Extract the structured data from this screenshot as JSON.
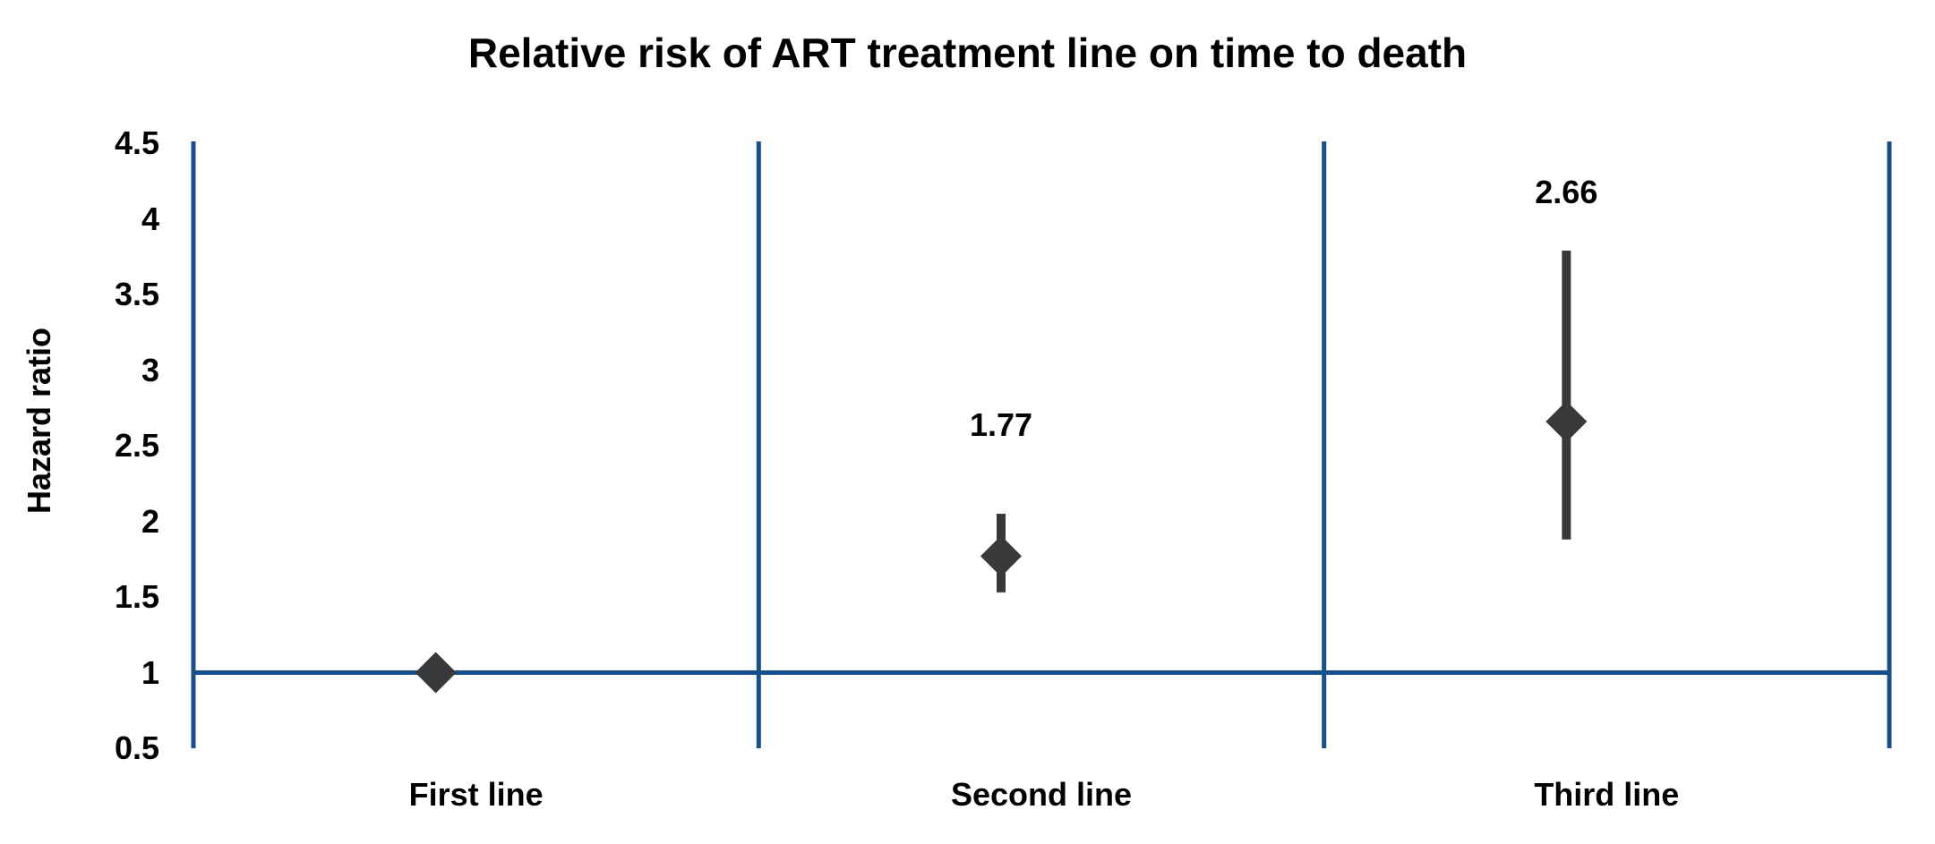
{
  "chart_data": {
    "type": "scatter",
    "title": "Relative risk of ART treatment line on time to death",
    "ylabel": "Hazard ratio",
    "xlabel": "",
    "categories": [
      "First line",
      "Second line",
      "Third line"
    ],
    "series": [
      {
        "name": "Hazard ratio with confidence interval",
        "points": [
          {
            "category": "First line",
            "hr": 1.0,
            "ci_low": null,
            "ci_high": null,
            "label": ""
          },
          {
            "category": "Second line",
            "hr": 1.77,
            "ci_low": 1.53,
            "ci_high": 2.05,
            "label": "1.77"
          },
          {
            "category": "Third line",
            "hr": 2.66,
            "ci_low": 1.88,
            "ci_high": 3.79,
            "label": "2.66"
          }
        ]
      }
    ],
    "ylim": [
      0.5,
      4.5
    ],
    "ytick_step": 0.5,
    "yticks": [
      4.5,
      4,
      3.5,
      3,
      2.5,
      2,
      1.5,
      1,
      0.5
    ],
    "reference_line_y": 1.0,
    "grid": "vertical category dividers only, no horizontal gridlines",
    "legend": "none",
    "marker_shape": "diamond",
    "colors": {
      "axis_line": "#15508C",
      "marker": "#38393B",
      "text": "#000000",
      "background": "#FFFFFF"
    }
  }
}
